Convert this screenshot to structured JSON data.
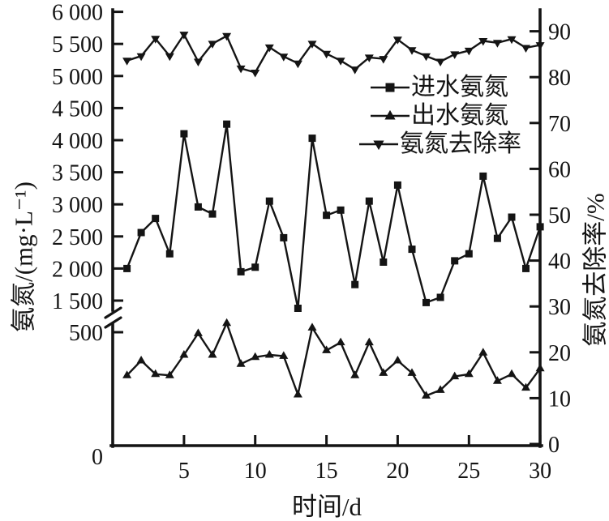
{
  "colors": {
    "foreground": "#141414",
    "background": "#ffffff"
  },
  "chart_data": {
    "type": "line",
    "title": "",
    "xlabel": "时间/d",
    "ylabel_left": "氨氮/(mg·L⁻¹)",
    "ylabel_right": "氨氮去除率/%",
    "x": [
      1,
      2,
      3,
      4,
      5,
      6,
      7,
      8,
      9,
      10,
      11,
      12,
      13,
      14,
      15,
      16,
      17,
      18,
      19,
      20,
      21,
      22,
      23,
      24,
      25,
      26,
      27,
      28,
      29,
      30
    ],
    "x_ticks": [
      5,
      10,
      15,
      20,
      25,
      30
    ],
    "left_axis": {
      "unit": "mg·L⁻¹",
      "break_between": [
        500,
        1500
      ],
      "ticks": [
        {
          "v": 0,
          "label": "0"
        },
        {
          "v": 500,
          "label": "500"
        },
        {
          "v": 1500,
          "label": "1 500"
        },
        {
          "v": 2000,
          "label": "2 000"
        },
        {
          "v": 2500,
          "label": "2 500"
        },
        {
          "v": 3000,
          "label": "3 000"
        },
        {
          "v": 3500,
          "label": "3 500"
        },
        {
          "v": 4000,
          "label": "4 000"
        },
        {
          "v": 4500,
          "label": "4 500"
        },
        {
          "v": 5000,
          "label": "5 000"
        },
        {
          "v": 5500,
          "label": "5 500"
        },
        {
          "v": 6000,
          "label": "6 000"
        }
      ]
    },
    "right_axis": {
      "unit": "%",
      "ticks": [
        0,
        10,
        20,
        30,
        40,
        50,
        60,
        70,
        80,
        90
      ]
    },
    "series": [
      {
        "name": "进水氨氮",
        "marker": "square",
        "axis": "left-upper",
        "values": [
          2000,
          2560,
          2780,
          2230,
          4100,
          2960,
          2850,
          4250,
          1950,
          2020,
          3050,
          2480,
          1380,
          4030,
          2830,
          2910,
          1750,
          3050,
          2100,
          3300,
          2300,
          1470,
          1550,
          2120,
          2230,
          3440,
          2470,
          2800,
          2000,
          2650
        ]
      },
      {
        "name": "出水氨氮",
        "marker": "triangle-up",
        "axis": "left-lower",
        "values": [
          310,
          375,
          315,
          310,
          400,
          495,
          400,
          540,
          360,
          390,
          400,
          395,
          225,
          520,
          420,
          455,
          310,
          455,
          320,
          375,
          320,
          220,
          245,
          305,
          315,
          410,
          285,
          315,
          255,
          340
        ]
      },
      {
        "name": "氨氮去除率",
        "marker": "triangle-down",
        "axis": "right",
        "values": [
          83.6,
          84.6,
          88.4,
          84.6,
          89.3,
          83.4,
          87.3,
          89.0,
          81.9,
          81.0,
          86.5,
          84.5,
          83.0,
          87.3,
          85.1,
          83.6,
          81.7,
          84.3,
          84.0,
          88.2,
          85.9,
          84.6,
          83.4,
          85.0,
          85.8,
          87.9,
          87.5,
          88.3,
          86.4,
          87.0
        ]
      }
    ],
    "legend_position": "upper-right-inside"
  }
}
